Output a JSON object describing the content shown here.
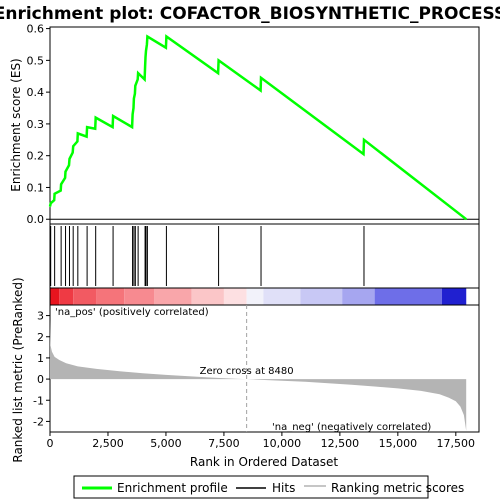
{
  "chart_data": {
    "type": "line",
    "title": "Enrichment plot: COFACTOR_BIOSYNTHETIC_PROCESS",
    "x_range": [
      0,
      18500
    ],
    "x_ticks": [
      0,
      2500,
      5000,
      7500,
      10000,
      12500,
      15000,
      17500
    ],
    "x_tick_labels": [
      "0",
      "2,500",
      "5,000",
      "7,500",
      "10,000",
      "12,500",
      "15,000",
      "17,500"
    ],
    "xlabel": "Rank in Ordered Dataset",
    "es_panel": {
      "ylabel": "Enrichment score (ES)",
      "ylim": [
        -0.015,
        0.605
      ],
      "y_ticks": [
        0.0,
        0.1,
        0.2,
        0.3,
        0.4,
        0.5,
        0.6
      ],
      "y_tick_labels": [
        "0.0",
        "0.1",
        "0.2",
        "0.3",
        "0.4",
        "0.5",
        "0.6"
      ],
      "series": [
        {
          "name": "Enrichment profile",
          "color": "#00ff00",
          "x": [
            0,
            30,
            180,
            200,
            460,
            480,
            650,
            670,
            820,
            840,
            980,
            1000,
            1180,
            1200,
            1580,
            1600,
            1950,
            1970,
            2700,
            2720,
            3540,
            3560,
            3600,
            3620,
            3660,
            3680,
            3780,
            3800,
            4080,
            4100,
            4120,
            4140,
            4180,
            4200,
            5000,
            5020,
            7250,
            7270,
            9080,
            9100,
            13520,
            13540,
            17950
          ],
          "y": [
            0.04,
            0.05,
            0.06,
            0.08,
            0.09,
            0.11,
            0.13,
            0.15,
            0.17,
            0.19,
            0.21,
            0.23,
            0.245,
            0.27,
            0.26,
            0.29,
            0.285,
            0.32,
            0.29,
            0.325,
            0.29,
            0.33,
            0.35,
            0.38,
            0.395,
            0.42,
            0.44,
            0.46,
            0.44,
            0.48,
            0.51,
            0.53,
            0.55,
            0.575,
            0.54,
            0.575,
            0.46,
            0.5,
            0.405,
            0.445,
            0.205,
            0.25,
            0.0
          ]
        }
      ]
    },
    "hits": {
      "name": "Hits",
      "color": "#000000",
      "x": [
        30,
        200,
        480,
        670,
        840,
        1000,
        1200,
        1600,
        1970,
        2720,
        3560,
        3620,
        3680,
        3800,
        4100,
        4140,
        4200,
        5020,
        7270,
        9100,
        13540
      ]
    },
    "ranking_bar": {
      "segments": [
        {
          "x0": 0,
          "x1": 400,
          "color": "#e8141e"
        },
        {
          "x0": 400,
          "x1": 1000,
          "color": "#ef3a44"
        },
        {
          "x0": 1000,
          "x1": 2000,
          "color": "#f25a62"
        },
        {
          "x0": 2000,
          "x1": 3200,
          "color": "#f5747a"
        },
        {
          "x0": 3200,
          "x1": 4500,
          "color": "#f78a90"
        },
        {
          "x0": 4500,
          "x1": 6100,
          "color": "#f9a6aa"
        },
        {
          "x0": 6100,
          "x1": 7500,
          "color": "#fbc6c8"
        },
        {
          "x0": 7500,
          "x1": 8480,
          "color": "#fde0e2"
        },
        {
          "x0": 8480,
          "x1": 9200,
          "color": "#f2f2fa"
        },
        {
          "x0": 9200,
          "x1": 10800,
          "color": "#e0e0f8"
        },
        {
          "x0": 10800,
          "x1": 12600,
          "color": "#c8c8f5"
        },
        {
          "x0": 12600,
          "x1": 14000,
          "color": "#a6a6f0"
        },
        {
          "x0": 14000,
          "x1": 16900,
          "color": "#6e6ee8"
        },
        {
          "x0": 16900,
          "x1": 17950,
          "color": "#2020d0"
        }
      ]
    },
    "metric_panel": {
      "ylabel": "Ranked list metric (PreRanked)",
      "ylim": [
        -2.5,
        3.5
      ],
      "y_ticks": [
        -2,
        -1,
        0,
        1,
        2,
        3
      ],
      "y_tick_labels": [
        "-2",
        "-1",
        "0",
        "1",
        "2",
        "3"
      ],
      "series": [
        {
          "name": "Ranking metric scores",
          "color": "#b4b4b4",
          "x": [
            0,
            20,
            80,
            200,
            400,
            700,
            1200,
            2000,
            3000,
            4000,
            5000,
            6000,
            7000,
            8000,
            8480,
            9000,
            10000,
            11000,
            12000,
            13000,
            14000,
            15000,
            16000,
            16800,
            17200,
            17500,
            17700,
            17850,
            17950
          ],
          "y": [
            2.8,
            1.6,
            1.3,
            1.05,
            0.9,
            0.75,
            0.6,
            0.48,
            0.37,
            0.28,
            0.2,
            0.13,
            0.07,
            0.02,
            0.0,
            -0.03,
            -0.08,
            -0.13,
            -0.2,
            -0.27,
            -0.35,
            -0.44,
            -0.56,
            -0.72,
            -0.88,
            -1.05,
            -1.3,
            -1.7,
            -2.45
          ]
        }
      ],
      "zero_cross_x": 8480,
      "zero_cross_label": "Zero cross at 8480",
      "pos_label": "'na_pos' (positively correlated)",
      "neg_label": "'na_neg' (negatively correlated)",
      "pos_color": "#e8141e",
      "neg_color": "#2020d0"
    },
    "legend": {
      "placement": "bottom",
      "items": [
        {
          "label": "Enrichment profile",
          "color": "#00ff00",
          "kind": "thick-line"
        },
        {
          "label": "Hits",
          "color": "#000000",
          "kind": "thin-line"
        },
        {
          "label": "Ranking metric scores",
          "color": "#b4b4b4",
          "kind": "thin-line"
        }
      ]
    }
  }
}
